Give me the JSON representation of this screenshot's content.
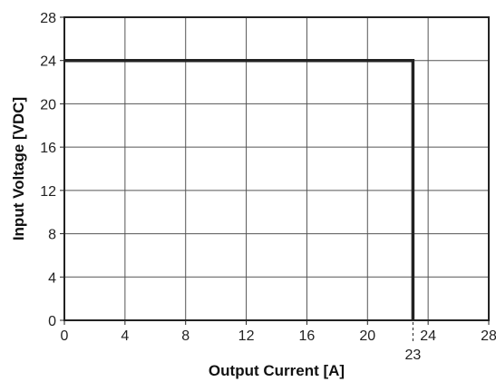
{
  "chart_data": {
    "type": "line",
    "title": "",
    "xlabel": "Output Current [A]",
    "ylabel": "Input Voltage [VDC]",
    "xlim": [
      0,
      28
    ],
    "ylim": [
      0,
      28
    ],
    "x_ticks": [
      0,
      4,
      8,
      12,
      16,
      20,
      24,
      28
    ],
    "y_ticks": [
      0,
      4,
      8,
      12,
      16,
      20,
      24,
      28
    ],
    "grid": true,
    "series": [
      {
        "x": [
          0,
          23,
          23
        ],
        "y": [
          24,
          24,
          0
        ]
      }
    ],
    "annotations": [
      {
        "text": "23",
        "x": 23,
        "style": "dashed-marker-below-axis"
      }
    ],
    "line_color": "#222222",
    "grid_color": "#555555"
  }
}
